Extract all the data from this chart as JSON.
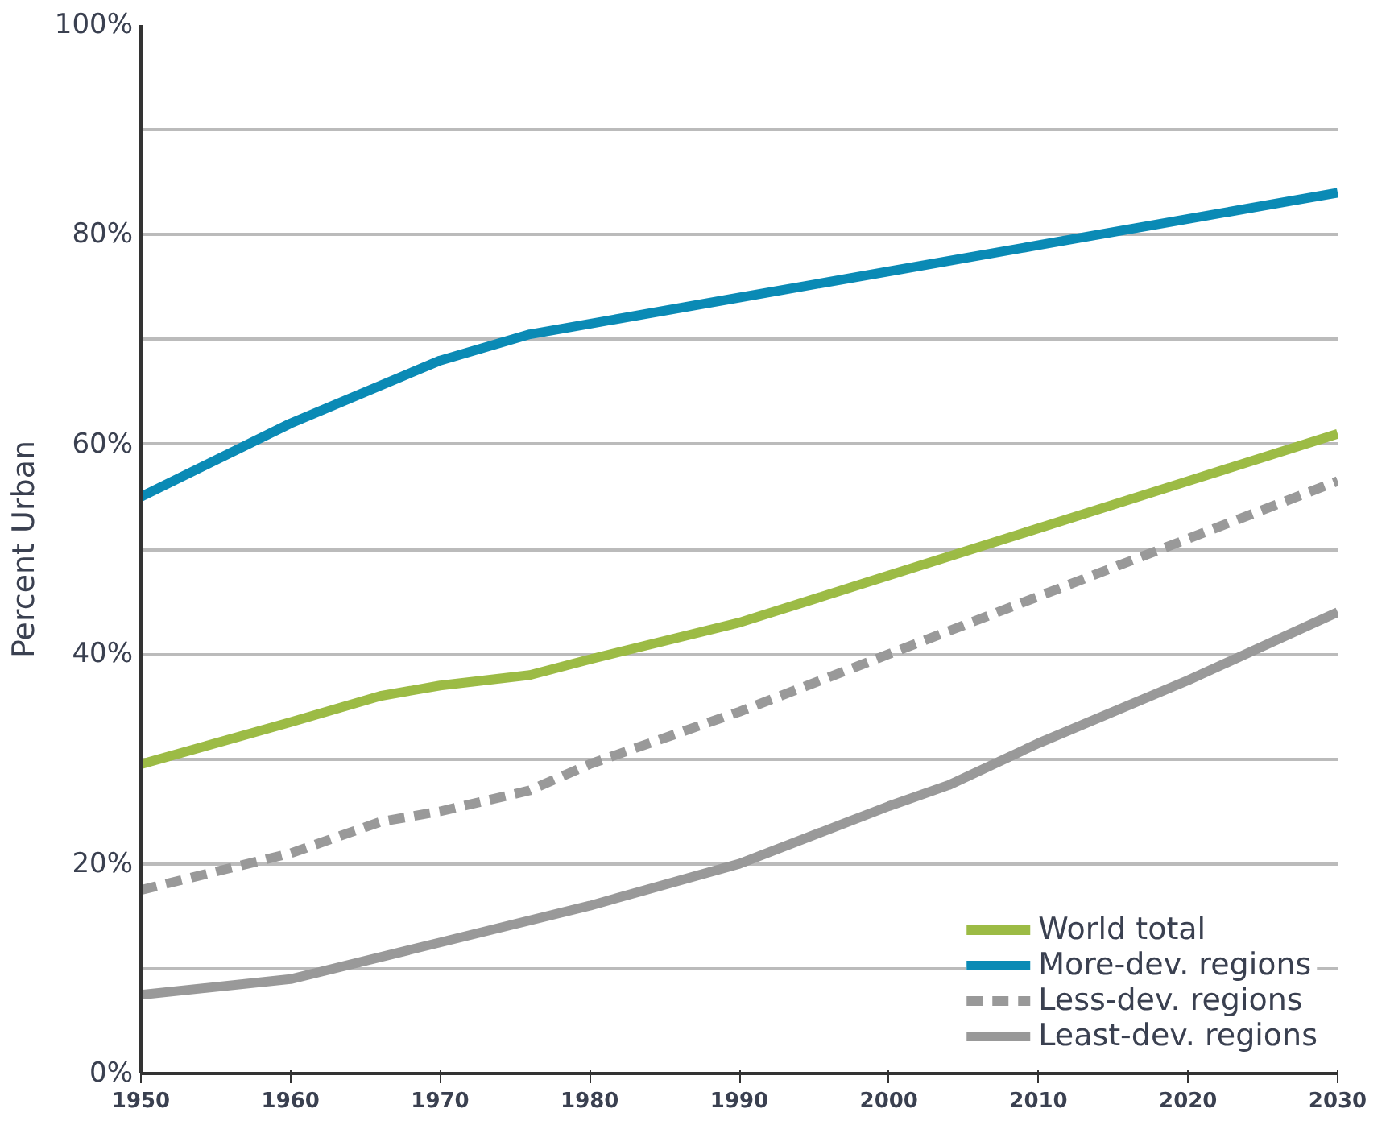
{
  "chart_data": {
    "type": "line",
    "ylabel": "Percent Urban",
    "xlim": [
      1950,
      2030
    ],
    "xticks": [
      1950,
      1960,
      1970,
      1980,
      1990,
      2000,
      2010,
      2020,
      2030
    ],
    "ylim": [
      0,
      100
    ],
    "yticks": [
      {
        "value": 0,
        "label": "0%"
      },
      {
        "value": 10,
        "label": null
      },
      {
        "value": 20,
        "label": "20%"
      },
      {
        "value": 30,
        "label": null
      },
      {
        "value": 40,
        "label": "40%"
      },
      {
        "value": 50,
        "label": null
      },
      {
        "value": 60,
        "label": "60%"
      },
      {
        "value": 70,
        "label": null
      },
      {
        "value": 80,
        "label": "80%"
      },
      {
        "value": 90,
        "label": null
      },
      {
        "value": 100,
        "label": "100%"
      }
    ],
    "grid": "y",
    "legend": "bottom right",
    "series": [
      {
        "name": "World total",
        "color": "#9cbb45",
        "x": [
          1950,
          1960,
          1966,
          1970,
          1976,
          1980,
          1990,
          2000,
          2010,
          2020,
          2030
        ],
        "values": [
          29.5,
          33.5,
          36,
          37,
          38,
          39.5,
          43,
          47.5,
          52,
          56.5,
          61
        ]
      },
      {
        "name": "More-dev. regions",
        "color": "#0a8ab5",
        "x": [
          1950,
          1960,
          1970,
          1976,
          1980,
          1990,
          2000,
          2010,
          2020,
          2030
        ],
        "values": [
          55,
          62,
          68,
          70.5,
          71.5,
          74,
          76.5,
          79,
          81.5,
          84
        ]
      },
      {
        "name": "Less-dev. regions",
        "color": "#999999",
        "line_style": "dashed",
        "x": [
          1950,
          1960,
          1966,
          1970,
          1976,
          1980,
          1990,
          2000,
          2010,
          2020,
          2030
        ],
        "values": [
          17.5,
          21,
          24,
          25,
          27,
          29.5,
          34.5,
          40,
          45.5,
          51,
          56.5
        ]
      },
      {
        "name": "Least-dev. regions",
        "color": "#999999",
        "x": [
          1950,
          1960,
          1970,
          1980,
          1990,
          2000,
          2004,
          2010,
          2020,
          2030
        ],
        "values": [
          7.5,
          9,
          12.5,
          16,
          20,
          25.5,
          27.5,
          31.5,
          37.5,
          44
        ]
      }
    ]
  }
}
